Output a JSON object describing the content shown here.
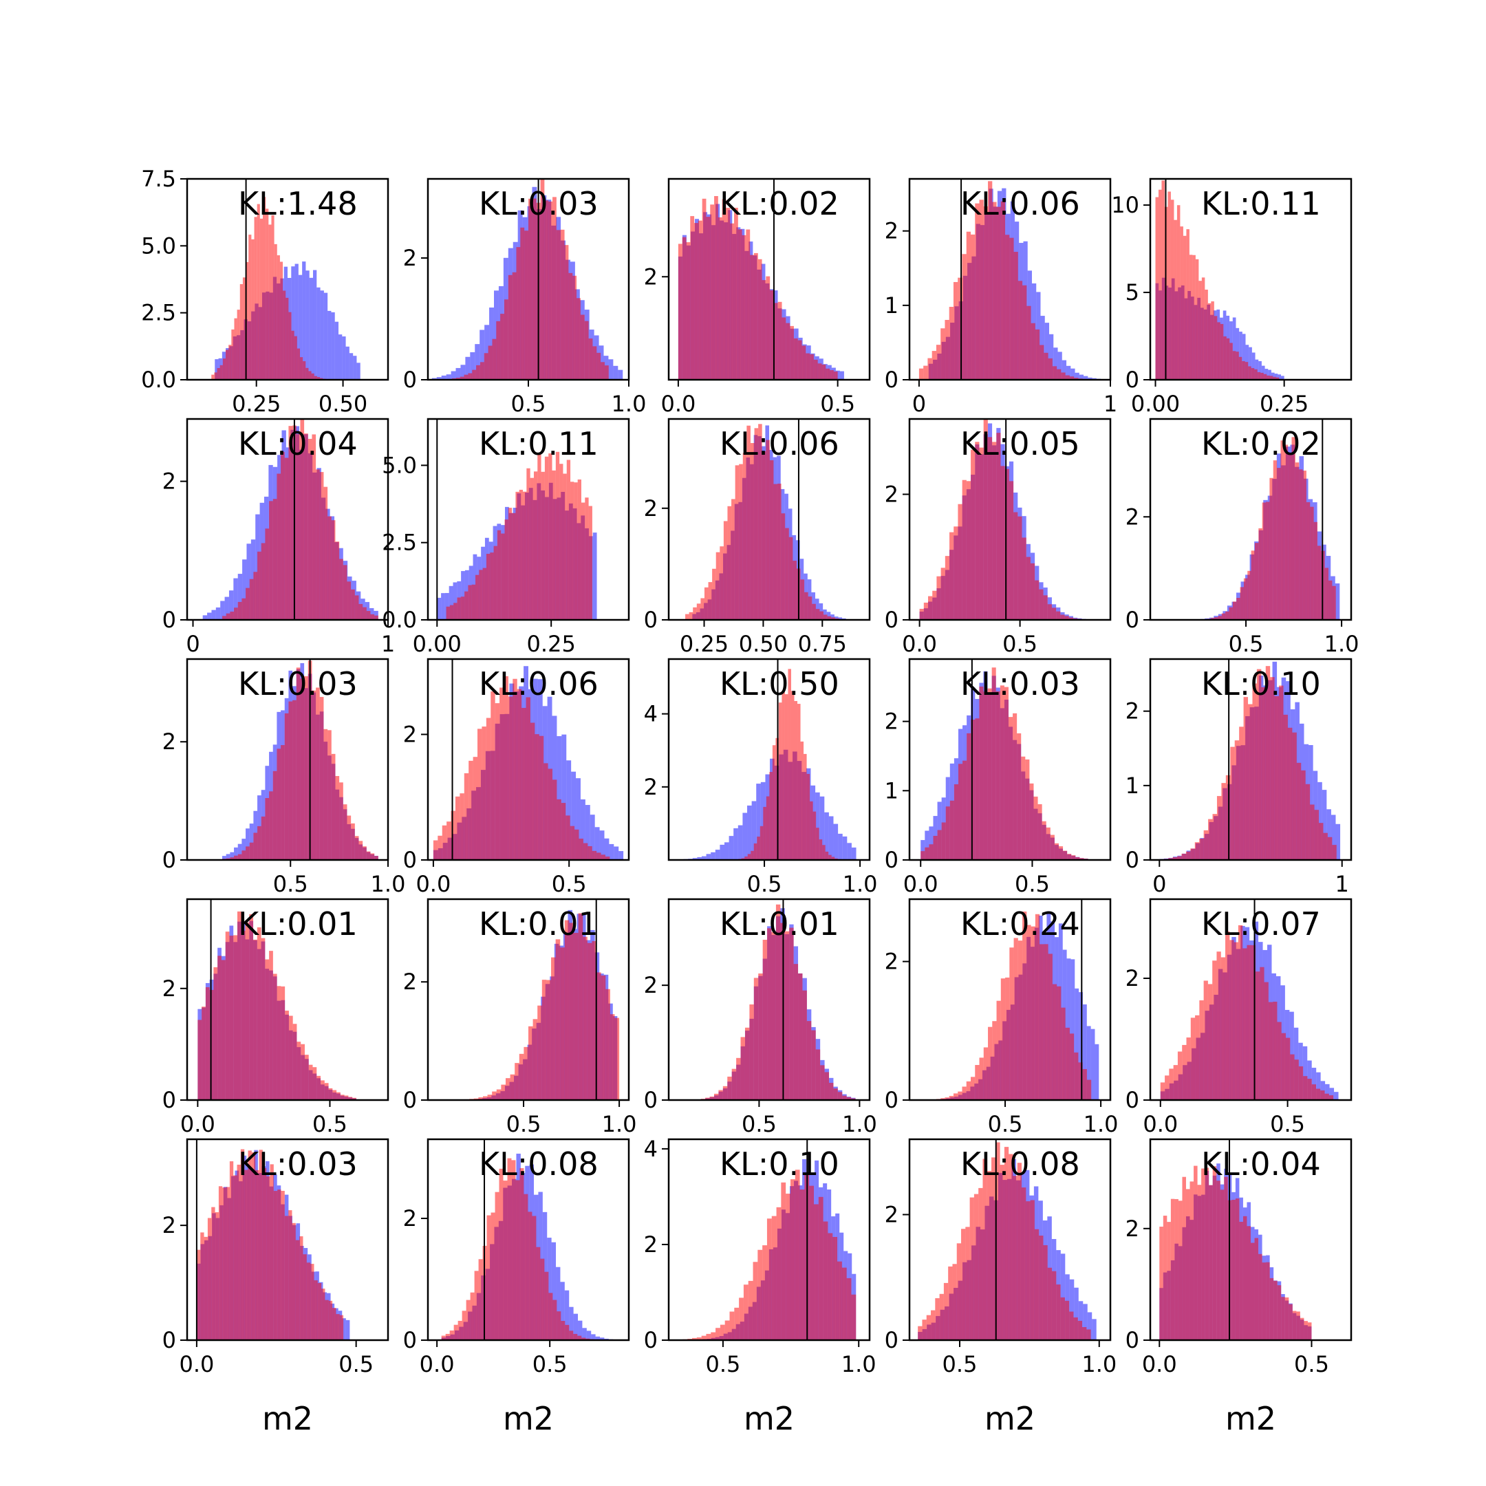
{
  "chart_data": {
    "type": "histogram_grid",
    "rows": 5,
    "cols": 5,
    "series_colors": {
      "blue": "#0000ff",
      "red": "#ff0000"
    },
    "opacity": 0.5,
    "xlabel": "m2",
    "panels": [
      {
        "kl": "KL:1.48",
        "xlim": [
          0.05,
          0.63
        ],
        "ylim": [
          0,
          7.5
        ],
        "xticks": [
          0.25,
          0.5
        ],
        "xtick_labels": [
          "0.25",
          "0.50"
        ],
        "yticks": [
          0,
          2.5,
          5,
          7.5
        ],
        "ytick_labels": [
          "0.0",
          "2.5",
          "5.0",
          "7.5"
        ],
        "vline": 0.22,
        "blue": {
          "mu": 0.33,
          "sd": 0.11,
          "lo": 0.13,
          "hi": 0.55,
          "peak": 3.5,
          "bumps": [
            {
              "c": 0.42,
              "h": 1.3,
              "w": 0.06
            }
          ]
        },
        "red": {
          "mu": 0.27,
          "sd": 0.055,
          "lo": 0.12,
          "hi": 0.45,
          "peak": 6.5
        }
      },
      {
        "kl": "KL:0.03",
        "xlim": [
          0.0,
          1.0
        ],
        "ylim": [
          0,
          3.3
        ],
        "xticks": [
          0.5,
          1.0
        ],
        "xtick_labels": [
          "0.5",
          "1.0"
        ],
        "yticks": [
          0,
          2
        ],
        "ytick_labels": [
          "0",
          "2"
        ],
        "vline": 0.55,
        "blue": {
          "mu": 0.55,
          "sd": 0.17,
          "lo": 0.02,
          "hi": 0.97,
          "peak": 3.0
        },
        "red": {
          "mu": 0.57,
          "sd": 0.14,
          "lo": 0.1,
          "hi": 0.9,
          "peak": 3.1
        }
      },
      {
        "kl": "KL:0.02",
        "xlim": [
          -0.03,
          0.6
        ],
        "ylim": [
          0,
          3.9
        ],
        "xticks": [
          0.0,
          0.5
        ],
        "xtick_labels": [
          "0.0",
          "0.5"
        ],
        "yticks": [
          2
        ],
        "ytick_labels": [
          "2"
        ],
        "vline": 0.3,
        "blue": {
          "mu": 0.12,
          "sd": 0.16,
          "lo": 0.0,
          "hi": 0.52,
          "peak": 3.2
        },
        "red": {
          "mu": 0.12,
          "sd": 0.15,
          "lo": 0.0,
          "hi": 0.5,
          "peak": 3.4
        }
      },
      {
        "kl": "KL:0.06",
        "xlim": [
          -0.05,
          1.0
        ],
        "ylim": [
          0,
          2.7
        ],
        "xticks": [
          0.0,
          1.0
        ],
        "xtick_labels": [
          "0",
          "1"
        ],
        "yticks": [
          0,
          1,
          2
        ],
        "ytick_labels": [
          "0",
          "1",
          "2"
        ],
        "vline": 0.22,
        "blue": {
          "mu": 0.42,
          "sd": 0.16,
          "lo": 0.05,
          "hi": 0.95,
          "peak": 2.5
        },
        "red": {
          "mu": 0.37,
          "sd": 0.15,
          "lo": 0.0,
          "hi": 0.9,
          "peak": 2.5
        }
      },
      {
        "kl": "KL:0.11",
        "xlim": [
          -0.01,
          0.38
        ],
        "ylim": [
          0,
          11.5
        ],
        "xticks": [
          0.0,
          0.25
        ],
        "xtick_labels": [
          "0.00",
          "0.25"
        ],
        "yticks": [
          0,
          5,
          10
        ],
        "ytick_labels": [
          "0",
          "5",
          "10"
        ],
        "vline": 0.02,
        "blue": {
          "mu": 0.02,
          "sd": 0.09,
          "lo": 0.0,
          "hi": 0.25,
          "peak": 5.5,
          "bumps": [
            {
              "c": 0.15,
              "h": 1.5,
              "w": 0.03
            }
          ]
        },
        "red": {
          "mu": 0.0,
          "sd": 0.08,
          "lo": 0.0,
          "hi": 0.24,
          "peak": 11.0
        }
      },
      {
        "kl": "KL:0.04",
        "xlim": [
          -0.03,
          1.0
        ],
        "ylim": [
          0,
          2.9
        ],
        "xticks": [
          0.0,
          1.0
        ],
        "xtick_labels": [
          "0",
          "1"
        ],
        "yticks": [
          0,
          2
        ],
        "ytick_labels": [
          "0",
          "2"
        ],
        "vline": 0.52,
        "blue": {
          "mu": 0.52,
          "sd": 0.17,
          "lo": 0.05,
          "hi": 0.95,
          "peak": 2.7
        },
        "red": {
          "mu": 0.55,
          "sd": 0.14,
          "lo": 0.15,
          "hi": 0.95,
          "peak": 2.85
        }
      },
      {
        "kl": "KL:0.11",
        "xlim": [
          -0.02,
          0.42
        ],
        "ylim": [
          0,
          6.5
        ],
        "xticks": [
          0.0,
          0.25
        ],
        "xtick_labels": [
          "0.00",
          "0.25"
        ],
        "yticks": [
          0,
          2.5,
          5
        ],
        "ytick_labels": [
          "0.0",
          "2.5",
          "5.0"
        ],
        "vline": 0.0,
        "blue": {
          "mu": 0.23,
          "sd": 0.12,
          "lo": 0.0,
          "hi": 0.35,
          "peak": 4.2
        },
        "red": {
          "mu": 0.25,
          "sd": 0.1,
          "lo": 0.02,
          "hi": 0.34,
          "peak": 5.2
        }
      },
      {
        "kl": "KL:0.06",
        "xlim": [
          0.1,
          0.95
        ],
        "ylim": [
          0,
          3.6
        ],
        "xticks": [
          0.25,
          0.5,
          0.75
        ],
        "xtick_labels": [
          "0.25",
          "0.50",
          "0.75"
        ],
        "yticks": [
          0,
          2
        ],
        "ytick_labels": [
          "0",
          "2"
        ],
        "vline": 0.65,
        "blue": {
          "mu": 0.5,
          "sd": 0.11,
          "lo": 0.2,
          "hi": 0.85,
          "peak": 3.3
        },
        "red": {
          "mu": 0.47,
          "sd": 0.11,
          "lo": 0.17,
          "hi": 0.82,
          "peak": 3.4
        }
      },
      {
        "kl": "KL:0.05",
        "xlim": [
          -0.05,
          0.95
        ],
        "ylim": [
          0,
          3.2
        ],
        "xticks": [
          0.0,
          0.5
        ],
        "xtick_labels": [
          "0.0",
          "0.5"
        ],
        "yticks": [
          0,
          2
        ],
        "ytick_labels": [
          "0",
          "2"
        ],
        "vline": 0.43,
        "blue": {
          "mu": 0.36,
          "sd": 0.14,
          "lo": 0.0,
          "hi": 0.85,
          "peak": 3.0
        },
        "red": {
          "mu": 0.34,
          "sd": 0.14,
          "lo": 0.0,
          "hi": 0.85,
          "peak": 3.0
        }
      },
      {
        "kl": "KL:0.02",
        "xlim": [
          0.0,
          1.05
        ],
        "ylim": [
          0,
          3.9
        ],
        "xticks": [
          0.5,
          1.0
        ],
        "xtick_labels": [
          "0.5",
          "1.0"
        ],
        "yticks": [
          0,
          2
        ],
        "ytick_labels": [
          "0",
          "2"
        ],
        "vline": 0.9,
        "blue": {
          "mu": 0.73,
          "sd": 0.14,
          "lo": 0.05,
          "hi": 0.99,
          "peak": 3.3
        },
        "red": {
          "mu": 0.72,
          "sd": 0.13,
          "lo": 0.2,
          "hi": 0.97,
          "peak": 3.4
        }
      },
      {
        "kl": "KL:0.03",
        "xlim": [
          -0.03,
          1.0
        ],
        "ylim": [
          0,
          3.4
        ],
        "xticks": [
          0.5,
          1.0
        ],
        "xtick_labels": [
          "0.5",
          "1.0"
        ],
        "yticks": [
          0,
          2
        ],
        "ytick_labels": [
          "0",
          "2"
        ],
        "vline": 0.6,
        "blue": {
          "mu": 0.55,
          "sd": 0.14,
          "lo": 0.15,
          "hi": 0.95,
          "peak": 3.2
        },
        "red": {
          "mu": 0.58,
          "sd": 0.13,
          "lo": 0.15,
          "hi": 0.95,
          "peak": 3.2
        }
      },
      {
        "kl": "KL:0.06",
        "xlim": [
          -0.02,
          0.72
        ],
        "ylim": [
          0,
          3.2
        ],
        "xticks": [
          0.0,
          0.5
        ],
        "xtick_labels": [
          "0.0",
          "0.5"
        ],
        "yticks": [
          0,
          2
        ],
        "ytick_labels": [
          "0",
          "2"
        ],
        "vline": 0.07,
        "blue": {
          "mu": 0.35,
          "sd": 0.14,
          "lo": 0.0,
          "hi": 0.7,
          "peak": 2.9
        },
        "red": {
          "mu": 0.28,
          "sd": 0.13,
          "lo": 0.0,
          "hi": 0.65,
          "peak": 2.8
        }
      },
      {
        "kl": "KL:0.50",
        "xlim": [
          0.0,
          1.05
        ],
        "ylim": [
          0,
          5.5
        ],
        "xticks": [
          0.5,
          1.0
        ],
        "xtick_labels": [
          "0.5",
          "1.0"
        ],
        "yticks": [
          2,
          4
        ],
        "ytick_labels": [
          "2",
          "4"
        ],
        "vline": 0.57,
        "blue": {
          "mu": 0.62,
          "sd": 0.17,
          "lo": 0.03,
          "hi": 0.98,
          "peak": 2.9
        },
        "red": {
          "mu": 0.63,
          "sd": 0.08,
          "lo": 0.25,
          "hi": 0.9,
          "peak": 4.9
        }
      },
      {
        "kl": "KL:0.03",
        "xlim": [
          -0.05,
          0.85
        ],
        "ylim": [
          0,
          2.9
        ],
        "xticks": [
          0.0,
          0.5
        ],
        "xtick_labels": [
          "0.0",
          "0.5"
        ],
        "yticks": [
          0,
          1,
          2
        ],
        "ytick_labels": [
          "0",
          "1",
          "2"
        ],
        "vline": 0.23,
        "blue": {
          "mu": 0.3,
          "sd": 0.14,
          "lo": 0.0,
          "hi": 0.75,
          "peak": 2.6
        },
        "red": {
          "mu": 0.33,
          "sd": 0.13,
          "lo": 0.0,
          "hi": 0.75,
          "peak": 2.6
        }
      },
      {
        "kl": "KL:0.10",
        "xlim": [
          -0.05,
          1.05
        ],
        "ylim": [
          0,
          2.7
        ],
        "xticks": [
          0.0,
          1.0
        ],
        "xtick_labels": [
          "0",
          "1"
        ],
        "yticks": [
          0,
          1,
          2
        ],
        "ytick_labels": [
          "0",
          "1",
          "2"
        ],
        "vline": 0.38,
        "blue": {
          "mu": 0.63,
          "sd": 0.19,
          "lo": 0.0,
          "hi": 0.99,
          "peak": 2.5
        },
        "red": {
          "mu": 0.58,
          "sd": 0.17,
          "lo": 0.0,
          "hi": 0.97,
          "peak": 2.5
        }
      },
      {
        "kl": "KL:0.01",
        "xlim": [
          -0.04,
          0.72
        ],
        "ylim": [
          0,
          3.6
        ],
        "xticks": [
          0.0,
          0.5
        ],
        "xtick_labels": [
          "0.0",
          "0.5"
        ],
        "yticks": [
          0,
          2
        ],
        "ytick_labels": [
          "0",
          "2"
        ],
        "vline": 0.05,
        "blue": {
          "mu": 0.17,
          "sd": 0.14,
          "lo": 0.0,
          "hi": 0.6,
          "peak": 3.1
        },
        "red": {
          "mu": 0.18,
          "sd": 0.14,
          "lo": 0.0,
          "hi": 0.6,
          "peak": 3.2
        }
      },
      {
        "kl": "KL:0.01",
        "xlim": [
          0.0,
          1.05
        ],
        "ylim": [
          0,
          3.4
        ],
        "xticks": [
          0.5,
          1.0
        ],
        "xtick_labels": [
          "0.5",
          "1.0"
        ],
        "yticks": [
          0,
          2
        ],
        "ytick_labels": [
          "0",
          "2"
        ],
        "vline": 0.88,
        "blue": {
          "mu": 0.78,
          "sd": 0.16,
          "lo": 0.05,
          "hi": 0.99,
          "peak": 3.1
        },
        "red": {
          "mu": 0.77,
          "sd": 0.17,
          "lo": 0.05,
          "hi": 1.0,
          "peak": 3.0
        }
      },
      {
        "kl": "KL:0.01",
        "xlim": [
          0.05,
          1.05
        ],
        "ylim": [
          0,
          3.5
        ],
        "xticks": [
          0.5,
          1.0
        ],
        "xtick_labels": [
          "0.5",
          "1.0"
        ],
        "yticks": [
          0,
          2
        ],
        "ytick_labels": [
          "0",
          "2"
        ],
        "vline": 0.62,
        "blue": {
          "mu": 0.61,
          "sd": 0.12,
          "lo": 0.1,
          "hi": 0.98,
          "peak": 3.2
        },
        "red": {
          "mu": 0.6,
          "sd": 0.12,
          "lo": 0.1,
          "hi": 0.98,
          "peak": 3.2
        }
      },
      {
        "kl": "KL:0.24",
        "xlim": [
          0.0,
          1.05
        ],
        "ylim": [
          0,
          2.9
        ],
        "xticks": [
          0.5,
          1.0
        ],
        "xtick_labels": [
          "0.5",
          "1.0"
        ],
        "yticks": [
          0,
          2
        ],
        "ytick_labels": [
          "0",
          "2"
        ],
        "vline": 0.9,
        "blue": {
          "mu": 0.72,
          "sd": 0.17,
          "lo": 0.15,
          "hi": 0.99,
          "peak": 2.6
        },
        "red": {
          "mu": 0.63,
          "sd": 0.15,
          "lo": 0.05,
          "hi": 0.95,
          "peak": 2.6
        }
      },
      {
        "kl": "KL:0.07",
        "xlim": [
          -0.04,
          0.75
        ],
        "ylim": [
          0,
          3.3
        ],
        "xticks": [
          0.0,
          0.5
        ],
        "xtick_labels": [
          "0.0",
          "0.5"
        ],
        "yticks": [
          0,
          2
        ],
        "ytick_labels": [
          "0",
          "2"
        ],
        "vline": 0.37,
        "blue": {
          "mu": 0.35,
          "sd": 0.14,
          "lo": 0.0,
          "hi": 0.7,
          "peak": 2.8
        },
        "red": {
          "mu": 0.3,
          "sd": 0.14,
          "lo": 0.0,
          "hi": 0.68,
          "peak": 2.7
        }
      },
      {
        "kl": "KL:0.03",
        "xlim": [
          -0.03,
          0.6
        ],
        "ylim": [
          0,
          3.5
        ],
        "xticks": [
          0.0,
          0.5
        ],
        "xtick_labels": [
          "0.0",
          "0.5"
        ],
        "yticks": [
          0,
          2
        ],
        "ytick_labels": [
          "0",
          "2"
        ],
        "vline": 0.0,
        "blue": {
          "mu": 0.18,
          "sd": 0.14,
          "lo": 0.0,
          "hi": 0.48,
          "peak": 3.1
        },
        "red": {
          "mu": 0.17,
          "sd": 0.14,
          "lo": 0.0,
          "hi": 0.46,
          "peak": 3.2
        }
      },
      {
        "kl": "KL:0.08",
        "xlim": [
          -0.04,
          0.85
        ],
        "ylim": [
          0,
          3.3
        ],
        "xticks": [
          0.0,
          0.5
        ],
        "xtick_labels": [
          "0.0",
          "0.5"
        ],
        "yticks": [
          0,
          2
        ],
        "ytick_labels": [
          "0",
          "2"
        ],
        "vline": 0.21,
        "blue": {
          "mu": 0.38,
          "sd": 0.12,
          "lo": 0.02,
          "hi": 0.8,
          "peak": 2.9
        },
        "red": {
          "mu": 0.33,
          "sd": 0.11,
          "lo": 0.02,
          "hi": 0.75,
          "peak": 2.9
        }
      },
      {
        "kl": "KL:0.10",
        "xlim": [
          0.3,
          1.04
        ],
        "ylim": [
          0,
          4.2
        ],
        "xticks": [
          0.5,
          1.0
        ],
        "xtick_labels": [
          "0.5",
          "1.0"
        ],
        "yticks": [
          0,
          2,
          4
        ],
        "ytick_labels": [
          "0",
          "2",
          "4"
        ],
        "vline": 0.81,
        "blue": {
          "mu": 0.82,
          "sd": 0.12,
          "lo": 0.38,
          "hi": 0.99,
          "peak": 3.6
        },
        "red": {
          "mu": 0.78,
          "sd": 0.13,
          "lo": 0.3,
          "hi": 0.99,
          "peak": 3.4
        }
      },
      {
        "kl": "KL:0.08",
        "xlim": [
          0.32,
          1.04
        ],
        "ylim": [
          0,
          3.2
        ],
        "xticks": [
          0.5,
          1.0
        ],
        "xtick_labels": [
          "0.5",
          "1.0"
        ],
        "yticks": [
          0,
          2
        ],
        "ytick_labels": [
          "0",
          "2"
        ],
        "vline": 0.63,
        "blue": {
          "mu": 0.7,
          "sd": 0.14,
          "lo": 0.35,
          "hi": 0.99,
          "peak": 2.7
        },
        "red": {
          "mu": 0.65,
          "sd": 0.13,
          "lo": 0.35,
          "hi": 0.97,
          "peak": 3.0
        }
      },
      {
        "kl": "KL:0.04",
        "xlim": [
          -0.03,
          0.63
        ],
        "ylim": [
          0,
          3.6
        ],
        "xticks": [
          0.0,
          0.5
        ],
        "xtick_labels": [
          "0.0",
          "0.5"
        ],
        "yticks": [
          0,
          2
        ],
        "ytick_labels": [
          "0",
          "2"
        ],
        "vline": 0.23,
        "blue": {
          "mu": 0.2,
          "sd": 0.13,
          "lo": 0.0,
          "hi": 0.5,
          "peak": 3.0
        },
        "red": {
          "mu": 0.15,
          "sd": 0.16,
          "lo": 0.0,
          "hi": 0.5,
          "peak": 3.0
        }
      }
    ]
  }
}
